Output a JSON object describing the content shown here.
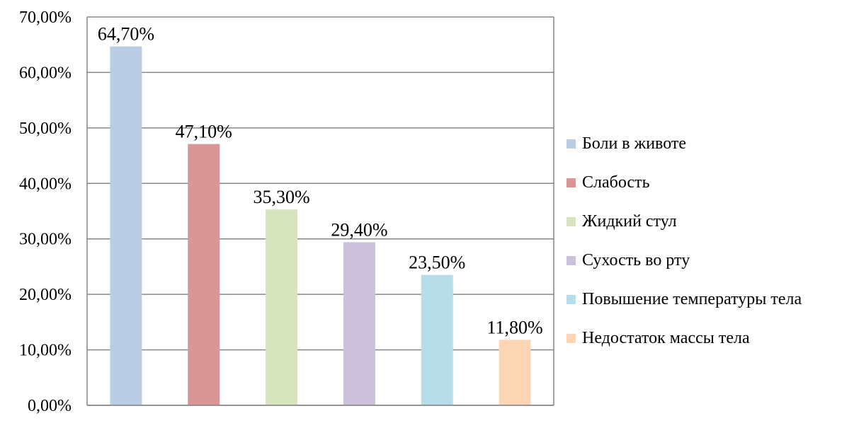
{
  "chart_data": {
    "type": "bar",
    "categories": [
      "Боли в животе",
      "Слабость",
      "Жидкий стул",
      "Сухость во рту",
      "Повышение температуры тела",
      "Недостаток массы тела"
    ],
    "values": [
      64.7,
      47.1,
      35.3,
      29.4,
      23.5,
      11.8
    ],
    "data_labels": [
      "64,70%",
      "47,10%",
      "35,30%",
      "29,40%",
      "23,50%",
      "11,80%"
    ],
    "colors": [
      "#b9cde5",
      "#d99694",
      "#d7e4bd",
      "#ccc1da",
      "#b7dee8",
      "#fcd5b5"
    ],
    "ylim": [
      0,
      70
    ],
    "yticks": [
      0,
      10,
      20,
      30,
      40,
      50,
      60,
      70
    ],
    "ytick_labels": [
      "0,00%",
      "10,00%",
      "20,00%",
      "30,00%",
      "40,00%",
      "50,00%",
      "60,00%",
      "70,00%"
    ],
    "grid": true,
    "legend_position": "right",
    "title": "",
    "xlabel": "",
    "ylabel": ""
  }
}
